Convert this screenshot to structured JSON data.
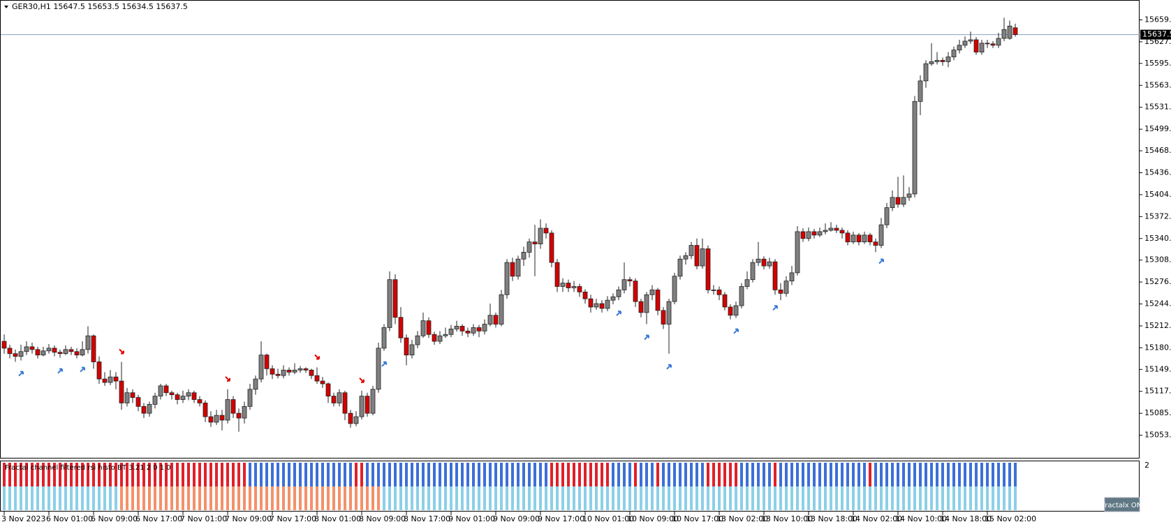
{
  "chart_data": {
    "type": "candlestick",
    "title": "GER30,H1  15647.5 15653.5 15634.5 15637.5",
    "bull_color": "#808080",
    "bear_color": "#d40000",
    "ylim": [
      15020,
      15687
    ],
    "yticks": [
      {
        "value": 15659,
        "label": "15659.0"
      },
      {
        "value": 15627,
        "label": "15627.0"
      },
      15595.5,
      15563.5,
      15531.5,
      15499.5,
      {
        "value": 15468,
        "label": "15468.0"
      },
      {
        "value": 15436,
        "label": "15436.0"
      },
      {
        "value": 15404,
        "label": "15404.0"
      },
      {
        "value": 15372,
        "label": "15372.0"
      },
      {
        "value": 15340,
        "label": "15340.0"
      },
      15308.5,
      15276.5,
      15244.5,
      15212.5,
      15180.5,
      {
        "value": 15149,
        "label": "15149.0"
      },
      {
        "value": 15117,
        "label": "15117.0"
      },
      {
        "value": 15085,
        "label": "15085.0"
      },
      {
        "value": 15053,
        "label": "15053.0"
      }
    ],
    "current_price": 15637.5,
    "categories": [
      "3 Nov 2023",
      null,
      null,
      null,
      null,
      null,
      null,
      null,
      "6 Nov 01:00",
      null,
      null,
      null,
      null,
      null,
      null,
      null,
      "6 Nov 09:00",
      null,
      null,
      null,
      null,
      null,
      null,
      null,
      "6 Nov 17:00",
      null,
      null,
      null,
      null,
      null,
      null,
      null,
      "7 Nov 01:00",
      null,
      null,
      null,
      null,
      null,
      null,
      null,
      "7 Nov 09:00",
      null,
      null,
      null,
      null,
      null,
      null,
      null,
      "7 Nov 17:00",
      null,
      null,
      null,
      null,
      null,
      null,
      null,
      "8 Nov 01:00",
      null,
      null,
      null,
      null,
      null,
      null,
      null,
      "8 Nov 09:00",
      null,
      null,
      null,
      null,
      null,
      null,
      null,
      "8 Nov 17:00",
      null,
      null,
      null,
      null,
      null,
      null,
      null,
      "9 Nov 01:00",
      null,
      null,
      null,
      null,
      null,
      null,
      null,
      "9 Nov 09:00",
      null,
      null,
      null,
      null,
      null,
      null,
      null,
      "9 Nov 17:00",
      null,
      null,
      null,
      null,
      null,
      null,
      null,
      "10 Nov 01:00",
      null,
      null,
      null,
      null,
      null,
      null,
      null,
      "10 Nov 09:00",
      null,
      null,
      null,
      null,
      null,
      null,
      null,
      "10 Nov 17:00",
      null,
      null,
      null,
      null,
      null,
      null,
      null,
      "13 Nov 02:00",
      null,
      null,
      null,
      null,
      null,
      null,
      null,
      "13 Nov 10:00",
      null,
      null,
      null,
      null,
      null,
      null,
      null,
      "13 Nov 18:00",
      null,
      null,
      null,
      null,
      null,
      null,
      null,
      "14 Nov 02:00",
      null,
      null,
      null,
      null,
      null,
      null,
      null,
      "14 Nov 10:00",
      null,
      null,
      null,
      null,
      null,
      null,
      null,
      "14 Nov 18:00",
      null,
      null,
      null,
      null,
      null,
      null,
      null,
      "15 Nov 02:00",
      null,
      null,
      null,
      null,
      null
    ],
    "ohlc": [
      [
        15190,
        15200,
        15172,
        15180
      ],
      [
        15180,
        15185,
        15165,
        15172
      ],
      [
        15172,
        15178,
        15160,
        15168
      ],
      [
        15168,
        15185,
        15162,
        15175
      ],
      [
        15175,
        15190,
        15170,
        15182
      ],
      [
        15182,
        15188,
        15172,
        15178
      ],
      [
        15178,
        15182,
        15165,
        15170
      ],
      [
        15170,
        15182,
        15168,
        15176
      ],
      [
        15176,
        15186,
        15172,
        15180
      ],
      [
        15180,
        15184,
        15168,
        15174
      ],
      [
        15174,
        15178,
        15166,
        15172
      ],
      [
        15172,
        15184,
        15170,
        15178
      ],
      [
        15178,
        15182,
        15170,
        15175
      ],
      [
        15175,
        15180,
        15165,
        15170
      ],
      [
        15170,
        15190,
        15168,
        15178
      ],
      [
        15178,
        15212,
        15172,
        15198
      ],
      [
        15198,
        15200,
        15150,
        15160
      ],
      [
        15160,
        15168,
        15128,
        15135
      ],
      [
        15135,
        15145,
        15125,
        15130
      ],
      [
        15130,
        15148,
        15126,
        15138
      ],
      [
        15138,
        15145,
        15120,
        15132
      ],
      [
        15132,
        15160,
        15090,
        15100
      ],
      [
        15100,
        15122,
        15095,
        15115
      ],
      [
        15115,
        15120,
        15100,
        15108
      ],
      [
        15108,
        15112,
        15088,
        15095
      ],
      [
        15095,
        15100,
        15078,
        15085
      ],
      [
        15085,
        15102,
        15080,
        15098
      ],
      [
        15098,
        15115,
        15092,
        15110
      ],
      [
        15110,
        15128,
        15105,
        15125
      ],
      [
        15125,
        15128,
        15110,
        15115
      ],
      [
        15115,
        15118,
        15105,
        15112
      ],
      [
        15112,
        15115,
        15098,
        15105
      ],
      [
        15105,
        15118,
        15100,
        15110
      ],
      [
        15110,
        15120,
        15104,
        15115
      ],
      [
        15115,
        15118,
        15100,
        15105
      ],
      [
        15105,
        15110,
        15095,
        15100
      ],
      [
        15100,
        15104,
        15072,
        15080
      ],
      [
        15080,
        15088,
        15065,
        15072
      ],
      [
        15072,
        15090,
        15068,
        15082
      ],
      [
        15082,
        15090,
        15060,
        15075
      ],
      [
        15075,
        15120,
        15070,
        15105
      ],
      [
        15105,
        15110,
        15078,
        15085
      ],
      [
        15085,
        15092,
        15058,
        15078
      ],
      [
        15078,
        15102,
        15070,
        15095
      ],
      [
        15095,
        15128,
        15090,
        15120
      ],
      [
        15120,
        15140,
        15112,
        15135
      ],
      [
        15135,
        15190,
        15130,
        15170
      ],
      [
        15170,
        15172,
        15140,
        15150
      ],
      [
        15150,
        15155,
        15135,
        15142
      ],
      [
        15142,
        15150,
        15136,
        15140
      ],
      [
        15140,
        15155,
        15136,
        15148
      ],
      [
        15148,
        15152,
        15140,
        15145
      ],
      [
        15145,
        15158,
        15142,
        15148
      ],
      [
        15148,
        15154,
        15144,
        15150
      ],
      [
        15150,
        15152,
        15144,
        15148
      ],
      [
        15148,
        15150,
        15135,
        15140
      ],
      [
        15140,
        15152,
        15128,
        15132
      ],
      [
        15132,
        15138,
        15122,
        15128
      ],
      [
        15128,
        15130,
        15100,
        15110
      ],
      [
        15110,
        15115,
        15095,
        15100
      ],
      [
        15100,
        15120,
        15095,
        15115
      ],
      [
        15115,
        15118,
        15075,
        15085
      ],
      [
        15085,
        15090,
        15064,
        15070
      ],
      [
        15070,
        15088,
        15066,
        15080
      ],
      [
        15080,
        15118,
        15076,
        15110
      ],
      [
        15110,
        15115,
        15080,
        15085
      ],
      [
        15085,
        15125,
        15082,
        15120
      ],
      [
        15120,
        15188,
        15115,
        15180
      ],
      [
        15180,
        15215,
        15176,
        15210
      ],
      [
        15210,
        15292,
        15205,
        15280
      ],
      [
        15280,
        15288,
        15215,
        15225
      ],
      [
        15225,
        15240,
        15188,
        15195
      ],
      [
        15195,
        15200,
        15155,
        15170
      ],
      [
        15170,
        15192,
        15165,
        15185
      ],
      [
        15185,
        15205,
        15180,
        15198
      ],
      [
        15198,
        15232,
        15195,
        15220
      ],
      [
        15220,
        15225,
        15195,
        15200
      ],
      [
        15200,
        15204,
        15185,
        15190
      ],
      [
        15190,
        15205,
        15186,
        15198
      ],
      [
        15198,
        15210,
        15195,
        15200
      ],
      [
        15200,
        15214,
        15196,
        15208
      ],
      [
        15208,
        15220,
        15204,
        15212
      ],
      [
        15212,
        15215,
        15198,
        15205
      ],
      [
        15205,
        15210,
        15196,
        15202
      ],
      [
        15202,
        15215,
        15198,
        15210
      ],
      [
        15210,
        15214,
        15196,
        15205
      ],
      [
        15205,
        15222,
        15200,
        15215
      ],
      [
        15215,
        15245,
        15212,
        15228
      ],
      [
        15228,
        15232,
        15210,
        15215
      ],
      [
        15215,
        15265,
        15212,
        15258
      ],
      [
        15258,
        15310,
        15252,
        15305
      ],
      [
        15305,
        15312,
        15278,
        15285
      ],
      [
        15285,
        15315,
        15280,
        15310
      ],
      [
        15310,
        15328,
        15300,
        15320
      ],
      [
        15320,
        15340,
        15312,
        15335
      ],
      [
        15335,
        15360,
        15285,
        15332
      ],
      [
        15332,
        15368,
        15325,
        15355
      ],
      [
        15355,
        15362,
        15340,
        15348
      ],
      [
        15348,
        15352,
        15298,
        15305
      ],
      [
        15305,
        15310,
        15262,
        15270
      ],
      [
        15270,
        15282,
        15262,
        15275
      ],
      [
        15275,
        15280,
        15262,
        15268
      ],
      [
        15268,
        15278,
        15262,
        15270
      ],
      [
        15270,
        15274,
        15255,
        15262
      ],
      [
        15262,
        15266,
        15245,
        15252
      ],
      [
        15252,
        15258,
        15232,
        15240
      ],
      [
        15240,
        15252,
        15236,
        15245
      ],
      [
        15245,
        15250,
        15232,
        15238
      ],
      [
        15238,
        15256,
        15234,
        15250
      ],
      [
        15250,
        15260,
        15244,
        15255
      ],
      [
        15255,
        15270,
        15250,
        15265
      ],
      [
        15265,
        15305,
        15260,
        15280
      ],
      [
        15280,
        15284,
        15270,
        15278
      ],
      [
        15278,
        15282,
        15240,
        15248
      ],
      [
        15248,
        15252,
        15225,
        15232
      ],
      [
        15232,
        15262,
        15215,
        15258
      ],
      [
        15258,
        15272,
        15250,
        15265
      ],
      [
        15265,
        15268,
        15228,
        15235
      ],
      [
        15235,
        15240,
        15208,
        15215
      ],
      [
        15215,
        15252,
        15172,
        15248
      ],
      [
        15248,
        15290,
        15244,
        15285
      ],
      [
        15285,
        15315,
        15280,
        15310
      ],
      [
        15310,
        15320,
        15302,
        15315
      ],
      [
        15315,
        15335,
        15310,
        15330
      ],
      [
        15330,
        15340,
        15295,
        15300
      ],
      [
        15300,
        15340,
        15296,
        15325
      ],
      [
        15325,
        15330,
        15260,
        15265
      ],
      [
        15265,
        15272,
        15258,
        15265
      ],
      [
        15265,
        15270,
        15250,
        15258
      ],
      [
        15258,
        15262,
        15235,
        15240
      ],
      [
        15240,
        15244,
        15222,
        15228
      ],
      [
        15228,
        15248,
        15224,
        15242
      ],
      [
        15242,
        15275,
        15238,
        15270
      ],
      [
        15270,
        15292,
        15266,
        15280
      ],
      [
        15280,
        15310,
        15276,
        15305
      ],
      [
        15305,
        15335,
        15300,
        15310
      ],
      [
        15310,
        15314,
        15295,
        15300
      ],
      [
        15300,
        15312,
        15296,
        15306
      ],
      [
        15306,
        15310,
        15258,
        15265
      ],
      [
        15265,
        15275,
        15250,
        15260
      ],
      [
        15260,
        15285,
        15255,
        15278
      ],
      [
        15278,
        15300,
        15272,
        15290
      ],
      [
        15290,
        15358,
        15286,
        15350
      ],
      [
        15350,
        15355,
        15335,
        15340
      ],
      [
        15340,
        15356,
        15336,
        15350
      ],
      [
        15350,
        15354,
        15340,
        15345
      ],
      [
        15345,
        15356,
        15342,
        15350
      ],
      [
        15350,
        15362,
        15346,
        15352
      ],
      [
        15352,
        15364,
        15350,
        15355
      ],
      [
        15355,
        15360,
        15348,
        15352
      ],
      [
        15352,
        15356,
        15340,
        15348
      ],
      [
        15348,
        15352,
        15330,
        15335
      ],
      [
        15335,
        15350,
        15332,
        15345
      ],
      [
        15345,
        15348,
        15330,
        15335
      ],
      [
        15335,
        15350,
        15332,
        15345
      ],
      [
        15345,
        15348,
        15330,
        15335
      ],
      [
        15335,
        15340,
        15320,
        15330
      ],
      [
        15330,
        15370,
        15326,
        15360
      ],
      [
        15360,
        15392,
        15355,
        15385
      ],
      [
        15385,
        15410,
        15380,
        15400
      ],
      [
        15400,
        15430,
        15385,
        15390
      ],
      [
        15390,
        15432,
        15386,
        15400
      ],
      [
        15400,
        15415,
        15395,
        15405
      ],
      [
        15405,
        15548,
        15400,
        15540
      ],
      [
        15540,
        15578,
        15520,
        15570
      ],
      [
        15570,
        15600,
        15560,
        15595
      ],
      [
        15595,
        15625,
        15592,
        15598
      ],
      [
        15598,
        15612,
        15594,
        15600
      ],
      [
        15600,
        15604,
        15592,
        15598
      ],
      [
        15598,
        15612,
        15590,
        15605
      ],
      [
        15605,
        15620,
        15600,
        15615
      ],
      [
        15615,
        15630,
        15610,
        15622
      ],
      [
        15622,
        15635,
        15618,
        15628
      ],
      [
        15628,
        15642,
        15624,
        15630
      ],
      [
        15630,
        15634,
        15608,
        15612
      ],
      [
        15612,
        15630,
        15608,
        15625
      ],
      [
        15625,
        15630,
        15618,
        15624
      ],
      [
        15624,
        15628,
        15618,
        15622
      ],
      [
        15622,
        15640,
        15618,
        15632
      ],
      [
        15632,
        15662,
        15628,
        15645
      ],
      [
        15632,
        15658,
        15630,
        15650
      ],
      [
        15647.5,
        15653.5,
        15634.5,
        15637.5
      ]
    ],
    "signals": {
      "buy": [
        3,
        10,
        14,
        68,
        110,
        115,
        119,
        131,
        138,
        157
      ],
      "buy_color": "#3a78d8",
      "sell": [
        21,
        40,
        56,
        64
      ],
      "sell_color": "#e00000"
    },
    "indicator": {
      "label": "Fractal channel filtered rsi histo BT 3.21 2 0 1 0",
      "yticks": [
        2
      ],
      "top_runs": [
        {
          "start": 0,
          "end": 43,
          "color": "#e0202a"
        },
        {
          "start": 44,
          "end": 62,
          "color": "#3c6fd8"
        },
        {
          "start": 63,
          "end": 64,
          "color": "#e0202a"
        },
        {
          "start": 65,
          "end": 97,
          "color": "#3c6fd8"
        },
        {
          "start": 98,
          "end": 108,
          "color": "#e0202a"
        },
        {
          "start": 109,
          "end": 112,
          "color": "#3c6fd8"
        },
        {
          "start": 113,
          "end": 113,
          "color": "#e0202a"
        },
        {
          "start": 114,
          "end": 116,
          "color": "#3c6fd8"
        },
        {
          "start": 117,
          "end": 117,
          "color": "#e0202a"
        },
        {
          "start": 118,
          "end": 125,
          "color": "#3c6fd8"
        },
        {
          "start": 126,
          "end": 131,
          "color": "#e0202a"
        },
        {
          "start": 132,
          "end": 137,
          "color": "#3c6fd8"
        },
        {
          "start": 138,
          "end": 138,
          "color": "#e0202a"
        },
        {
          "start": 139,
          "end": 154,
          "color": "#3c6fd8"
        },
        {
          "start": 155,
          "end": 155,
          "color": "#e0202a"
        },
        {
          "start": 156,
          "end": 181,
          "color": "#3c6fd8"
        }
      ],
      "bottom_runs": [
        {
          "start": 0,
          "end": 20,
          "color": "#8ccfe8"
        },
        {
          "start": 21,
          "end": 67,
          "color": "#f4906a"
        },
        {
          "start": 68,
          "end": 181,
          "color": "#8ccfe8"
        }
      ]
    },
    "button": "fractalx ON"
  }
}
